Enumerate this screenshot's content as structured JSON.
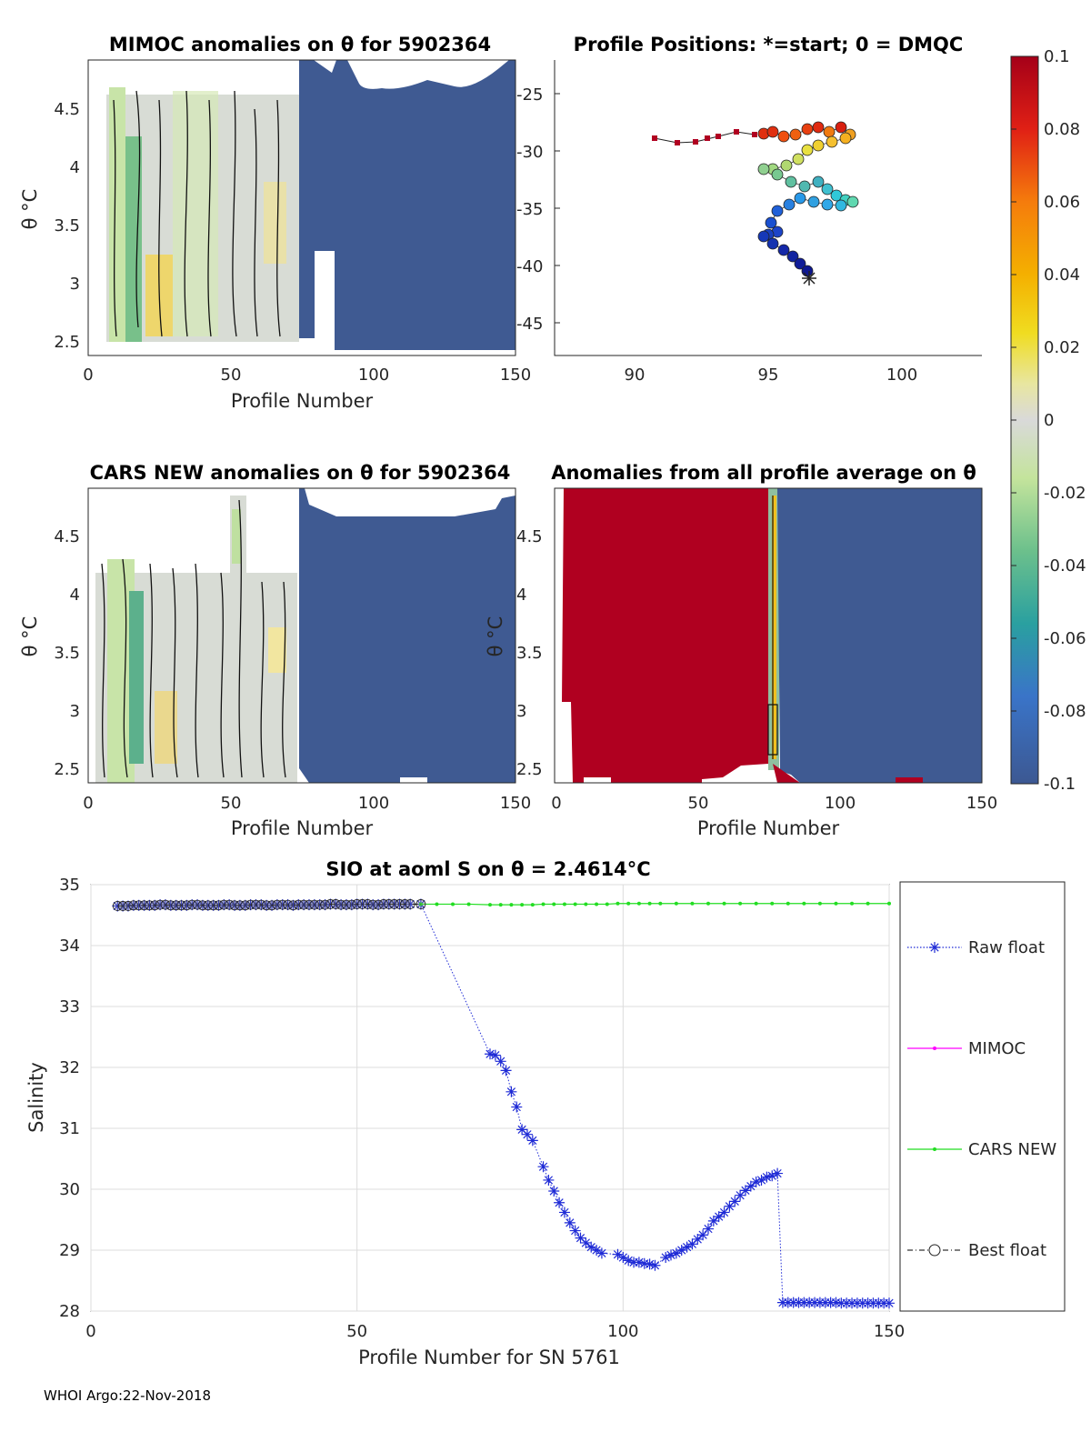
{
  "footer": "WHOI Argo:22-Nov-2018",
  "panels": {
    "mimoc": {
      "title": "MIMOC anomalies on θ  for 5902364",
      "xlabel": "Profile Number",
      "ylabel": "θ °C",
      "xticks": [
        "0",
        "50",
        "100",
        "150"
      ],
      "yticks": [
        "2.5",
        "3",
        "3.5",
        "4",
        "4.5"
      ]
    },
    "positions": {
      "title": "Profile Positions: *=start; 0 = DMQC",
      "xticks": [
        "90",
        "95",
        "100"
      ],
      "yticks": [
        "-25",
        "-30",
        "-35",
        "-40",
        "-45"
      ]
    },
    "cars": {
      "title": "CARS NEW anomalies on θ for 5902364",
      "xlabel": "Profile Number",
      "ylabel": "θ °C",
      "xticks": [
        "0",
        "50",
        "100",
        "150"
      ],
      "yticks": [
        "2.5",
        "3",
        "3.5",
        "4",
        "4.5"
      ]
    },
    "allavg": {
      "title": "Anomalies from all profile average on θ",
      "xlabel": "Profile Number",
      "ylabel": "θ °C",
      "xticks": [
        "0",
        "50",
        "100",
        "150"
      ],
      "yticks": [
        "2.5",
        "3",
        "3.5",
        "4",
        "4.5"
      ]
    }
  },
  "colorbar": {
    "ticks": [
      "0.1",
      "0.08",
      "0.06",
      "0.04",
      "0.02",
      "0",
      "-0.02",
      "-0.04",
      "-0.06",
      "-0.08",
      "-0.1"
    ]
  },
  "colors": {
    "high": "#b00020",
    "low": "#3f5a92",
    "neutral": "#d9d9d9",
    "raw": "#1f2bd6",
    "mimoc": "#ff00ff",
    "cars": "#22dd22",
    "best": "#000000"
  },
  "chart_data": {
    "type": "line",
    "title": "SIO at aoml S on θ = 2.4614°C",
    "xlabel": "Profile Number for SN 5761",
    "ylabel": "Salinity",
    "xlim": [
      0,
      150
    ],
    "ylim": [
      28,
      35
    ],
    "xticks": [
      "0",
      "50",
      "100",
      "150"
    ],
    "yticks": [
      "28",
      "29",
      "30",
      "31",
      "32",
      "33",
      "34",
      "35"
    ],
    "legend": [
      "Raw float",
      "MIMOC",
      "CARS NEW",
      "Best float"
    ],
    "series": [
      {
        "name": "Raw float",
        "x": [
          5,
          6,
          7,
          8,
          9,
          10,
          11,
          12,
          13,
          14,
          15,
          16,
          17,
          18,
          19,
          20,
          21,
          22,
          23,
          24,
          25,
          26,
          27,
          28,
          29,
          30,
          31,
          32,
          33,
          34,
          35,
          36,
          37,
          38,
          39,
          40,
          41,
          42,
          43,
          44,
          45,
          46,
          47,
          48,
          49,
          50,
          51,
          52,
          53,
          54,
          55,
          56,
          57,
          58,
          59,
          60,
          62,
          75,
          76,
          77,
          78,
          79,
          80,
          81,
          82,
          83,
          85,
          86,
          87,
          88,
          89,
          90,
          91,
          92,
          93,
          94,
          95,
          96,
          99,
          100,
          101,
          102,
          103,
          104,
          105,
          106,
          108,
          109,
          110,
          111,
          112,
          113,
          114,
          115,
          116,
          117,
          118,
          119,
          120,
          121,
          122,
          123,
          124,
          125,
          126,
          127,
          128,
          129,
          130,
          131,
          132,
          133,
          134,
          135,
          136,
          137,
          138,
          139,
          140,
          141,
          142,
          143,
          144,
          145,
          146,
          147,
          148,
          149,
          150
        ],
        "y": [
          34.65,
          34.65,
          34.65,
          34.66,
          34.66,
          34.66,
          34.66,
          34.66,
          34.67,
          34.67,
          34.66,
          34.66,
          34.66,
          34.66,
          34.67,
          34.67,
          34.66,
          34.66,
          34.66,
          34.66,
          34.67,
          34.67,
          34.66,
          34.66,
          34.66,
          34.67,
          34.67,
          34.67,
          34.66,
          34.66,
          34.67,
          34.67,
          34.67,
          34.66,
          34.67,
          34.67,
          34.67,
          34.67,
          34.67,
          34.67,
          34.68,
          34.68,
          34.67,
          34.67,
          34.67,
          34.68,
          34.68,
          34.68,
          34.67,
          34.67,
          34.68,
          34.68,
          34.68,
          34.68,
          34.68,
          34.68,
          34.68,
          32.22,
          32.2,
          32.1,
          31.95,
          31.6,
          31.35,
          30.98,
          30.9,
          30.8,
          30.37,
          30.15,
          29.97,
          29.78,
          29.62,
          29.45,
          29.32,
          29.2,
          29.12,
          29.05,
          29.0,
          28.95,
          28.93,
          28.88,
          28.83,
          28.8,
          28.8,
          28.78,
          28.77,
          28.75,
          28.88,
          28.92,
          28.95,
          29.0,
          29.05,
          29.1,
          29.18,
          29.25,
          29.35,
          29.48,
          29.55,
          29.62,
          29.72,
          29.8,
          29.9,
          29.98,
          30.05,
          30.12,
          30.15,
          30.2,
          30.22,
          30.26,
          28.14,
          28.14,
          28.14,
          28.14,
          28.14,
          28.14,
          28.14,
          28.14,
          28.14,
          28.14,
          28.14,
          28.13,
          28.13,
          28.13,
          28.13,
          28.13,
          28.13,
          28.13,
          28.13,
          28.13,
          28.13
        ]
      },
      {
        "name": "MIMOC",
        "x": [],
        "y": []
      },
      {
        "name": "CARS NEW",
        "x": [
          62,
          65,
          68,
          71,
          75,
          77,
          79,
          81,
          83,
          85,
          87,
          89,
          91,
          93,
          95,
          97,
          99,
          101,
          103,
          105,
          107,
          110,
          113,
          116,
          119,
          122,
          125,
          128,
          131,
          134,
          137,
          140,
          143,
          146,
          150
        ],
        "y": [
          34.68,
          34.68,
          34.68,
          34.68,
          34.67,
          34.67,
          34.67,
          34.67,
          34.67,
          34.68,
          34.68,
          34.68,
          34.68,
          34.68,
          34.68,
          34.68,
          34.69,
          34.69,
          34.69,
          34.69,
          34.69,
          34.69,
          34.69,
          34.69,
          34.69,
          34.69,
          34.69,
          34.69,
          34.69,
          34.69,
          34.69,
          34.69,
          34.69,
          34.69,
          34.69
        ]
      },
      {
        "name": "Best float",
        "x": [
          5,
          6,
          7,
          8,
          9,
          10,
          11,
          12,
          13,
          14,
          15,
          16,
          17,
          18,
          19,
          20,
          21,
          22,
          23,
          24,
          25,
          26,
          27,
          28,
          29,
          30,
          31,
          32,
          33,
          34,
          35,
          36,
          37,
          38,
          39,
          40,
          41,
          42,
          43,
          44,
          45,
          46,
          47,
          48,
          49,
          50,
          51,
          52,
          53,
          54,
          55,
          56,
          57,
          58,
          59,
          60,
          62
        ],
        "y": [
          34.65,
          34.65,
          34.65,
          34.66,
          34.66,
          34.66,
          34.66,
          34.66,
          34.67,
          34.67,
          34.66,
          34.66,
          34.66,
          34.66,
          34.67,
          34.67,
          34.66,
          34.66,
          34.66,
          34.66,
          34.67,
          34.67,
          34.66,
          34.66,
          34.66,
          34.67,
          34.67,
          34.67,
          34.66,
          34.66,
          34.67,
          34.67,
          34.67,
          34.66,
          34.67,
          34.67,
          34.67,
          34.67,
          34.67,
          34.67,
          34.68,
          34.68,
          34.67,
          34.67,
          34.67,
          34.68,
          34.68,
          34.68,
          34.67,
          34.67,
          34.68,
          34.68,
          34.68,
          34.68,
          34.68,
          34.68,
          34.68
        ]
      }
    ]
  }
}
